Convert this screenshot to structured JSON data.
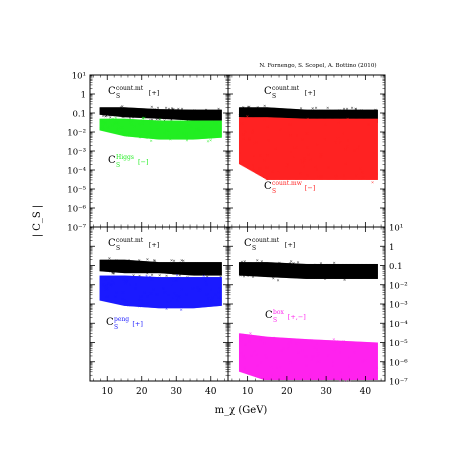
{
  "credit": "N. Fornengo, S. Scopel, A. Bottino  (2010)",
  "ylabel": "| C_S |",
  "xlabel": "m_χ (GeV)",
  "chart_data": [
    {
      "type": "scatter",
      "panel": "top-left",
      "xlim": [
        5,
        45
      ],
      "ylim": [
        1e-07,
        10
      ],
      "yscale": "log",
      "xticks": [],
      "yticks": [
        "10¹",
        "1",
        "0.1",
        "10⁻²",
        "10⁻³",
        "10⁻⁴",
        "10⁻⁵",
        "10⁻⁶",
        "10⁻⁷"
      ],
      "series": [
        {
          "name": "C_S^count.mt [+]",
          "color": "#000000",
          "base": "C",
          "sub": "S",
          "sup": "count.mt",
          "sign": "[+]",
          "band": [
            [
              8,
              0.08,
              0.2
            ],
            [
              15,
              0.06,
              0.2
            ],
            [
              25,
              0.05,
              0.16
            ],
            [
              35,
              0.04,
              0.15
            ],
            [
              43,
              0.04,
              0.15
            ]
          ]
        },
        {
          "name": "C_S^Higgs [−]",
          "color": "#22ee22",
          "base": "C",
          "sub": "S",
          "sup": "Higgs",
          "sign": "[−]",
          "band": [
            [
              8,
              0.012,
              0.05
            ],
            [
              15,
              0.006,
              0.05
            ],
            [
              25,
              0.004,
              0.04
            ],
            [
              35,
              0.004,
              0.04
            ],
            [
              43,
              0.005,
              0.04
            ]
          ]
        }
      ]
    },
    {
      "type": "scatter",
      "panel": "top-right",
      "xlim": [
        5,
        45
      ],
      "ylim": [
        1e-07,
        10
      ],
      "yscale": "log",
      "xticks": [],
      "yticks": [],
      "series": [
        {
          "name": "C_S^count.mt [+]",
          "color": "#000000",
          "base": "C",
          "sub": "S",
          "sup": "count.mt",
          "sign": "[+]",
          "band": [
            [
              8,
              0.06,
              0.2
            ],
            [
              15,
              0.05,
              0.2
            ],
            [
              25,
              0.04,
              0.15
            ],
            [
              35,
              0.03,
              0.15
            ],
            [
              43,
              0.03,
              0.15
            ]
          ]
        },
        {
          "name": "C_S^count.mw [−]",
          "color": "#ff2222",
          "base": "C",
          "sub": "S",
          "sup": "count.mw",
          "sign": "[−]",
          "band": [
            [
              8,
              0.0002,
              0.06
            ],
            [
              15,
              3e-05,
              0.06
            ],
            [
              25,
              3e-05,
              0.05
            ],
            [
              35,
              3e-05,
              0.05
            ],
            [
              43,
              3e-05,
              0.05
            ]
          ]
        }
      ]
    },
    {
      "type": "scatter",
      "panel": "bottom-left",
      "xlim": [
        5,
        45
      ],
      "ylim": [
        1e-07,
        10
      ],
      "yscale": "log",
      "xticks": [
        "10",
        "20",
        "30",
        "40"
      ],
      "yticks": [],
      "series": [
        {
          "name": "C_S^count.mt [+]",
          "color": "#000000",
          "base": "C",
          "sub": "S",
          "sup": "count.mt",
          "sign": "[+]",
          "band": [
            [
              8,
              0.05,
              0.2
            ],
            [
              15,
              0.04,
              0.2
            ],
            [
              25,
              0.04,
              0.15
            ],
            [
              35,
              0.03,
              0.15
            ],
            [
              43,
              0.03,
              0.15
            ]
          ]
        },
        {
          "name": "C_S^peng [+]",
          "color": "#1a1aff",
          "base": "C",
          "sub": "S",
          "sup": "peng",
          "sign": "[+]",
          "band": [
            [
              8,
              0.0015,
              0.03
            ],
            [
              15,
              0.0008,
              0.03
            ],
            [
              25,
              0.0006,
              0.025
            ],
            [
              35,
              0.0006,
              0.025
            ],
            [
              43,
              0.0008,
              0.025
            ]
          ]
        }
      ]
    },
    {
      "type": "scatter",
      "panel": "bottom-right",
      "xlim": [
        5,
        45
      ],
      "ylim": [
        1e-07,
        10
      ],
      "yscale": "log",
      "xticks": [
        "10",
        "20",
        "30",
        "40"
      ],
      "yticks": [
        "10¹",
        "1",
        "0.1",
        "10⁻²",
        "10⁻³",
        "10⁻⁴",
        "10⁻⁵",
        "10⁻⁶",
        "10⁻⁷"
      ],
      "series": [
        {
          "name": "C_S^count.mt [+]",
          "color": "#000000",
          "base": "C",
          "sub": "S",
          "sup": "count.mt",
          "sign": "[+]",
          "band": [
            [
              8,
              0.03,
              0.15
            ],
            [
              15,
              0.025,
              0.15
            ],
            [
              25,
              0.02,
              0.12
            ],
            [
              35,
              0.02,
              0.12
            ],
            [
              43,
              0.02,
              0.12
            ]
          ]
        },
        {
          "name": "C_S^box [+,−]",
          "color": "#ff22ee",
          "base": "C",
          "sub": "S",
          "sup": "box",
          "sign": "[+,−]",
          "band": [
            [
              8,
              3e-07,
              3e-05
            ],
            [
              15,
              1e-07,
              2e-05
            ],
            [
              25,
              1e-07,
              1.5e-05
            ],
            [
              35,
              1e-07,
              1.2e-05
            ],
            [
              43,
              1e-07,
              1e-05
            ]
          ]
        }
      ]
    }
  ]
}
